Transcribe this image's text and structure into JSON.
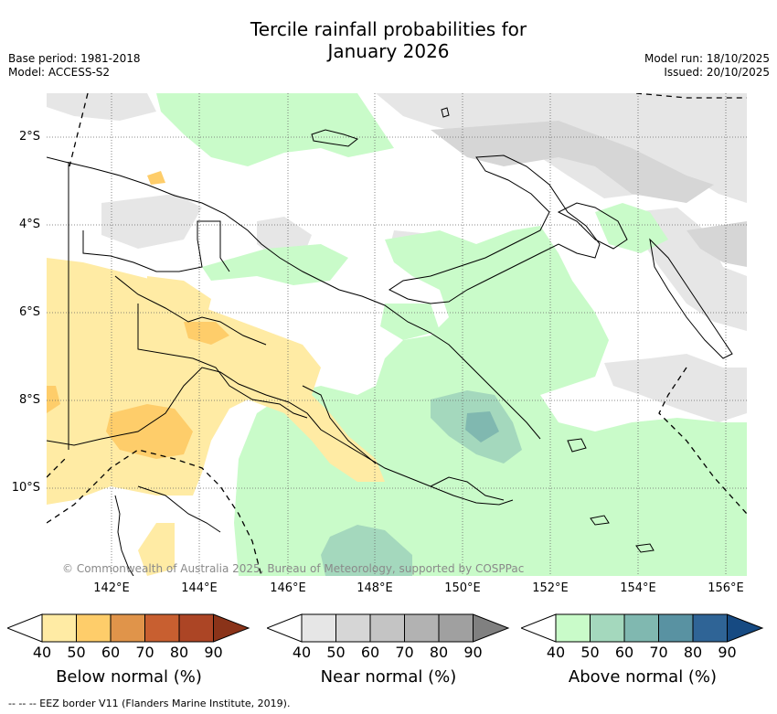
{
  "title": {
    "line1": "Tercile rainfall probabilities for",
    "line2": "January 2026"
  },
  "meta": {
    "base_period": "Base period: 1981-2018",
    "model": "Model: ACCESS-S2",
    "model_run": "Model run: 18/10/2025",
    "issued": "Issued: 20/10/2025"
  },
  "map": {
    "lat_labels": [
      "2°S",
      "4°S",
      "6°S",
      "8°S",
      "10°S"
    ],
    "lon_labels": [
      "142°E",
      "144°E",
      "146°E",
      "148°E",
      "150°E",
      "152°E",
      "154°E",
      "156°E"
    ],
    "copyright": "© Commonwealth of Australia 2025, Bureau of Meteorology, supported by COSPPac"
  },
  "colorbars": [
    {
      "title": "Below normal (%)",
      "ticks": [
        "40",
        "50",
        "60",
        "70",
        "80",
        "90"
      ],
      "colors": [
        "#ffeba4",
        "#fecd6a",
        "#e0944a",
        "#c85f30",
        "#ac4525",
        "#8a3319"
      ]
    },
    {
      "title": "Near normal (%)",
      "ticks": [
        "40",
        "50",
        "60",
        "70",
        "80",
        "90"
      ],
      "colors": [
        "#e6e6e6",
        "#d6d6d6",
        "#c4c4c4",
        "#b2b2b2",
        "#a0a0a0",
        "#808080"
      ]
    },
    {
      "title": "Above normal (%)",
      "ticks": [
        "40",
        "50",
        "60",
        "70",
        "80",
        "90"
      ],
      "colors": [
        "#c9fbc9",
        "#a4d8bd",
        "#80b8b0",
        "#5992a2",
        "#2f6496",
        "#164a82"
      ]
    }
  ],
  "eez_legend": "--  --  -- EEZ border V11 (Flanders Marine Institute, 2019)."
}
